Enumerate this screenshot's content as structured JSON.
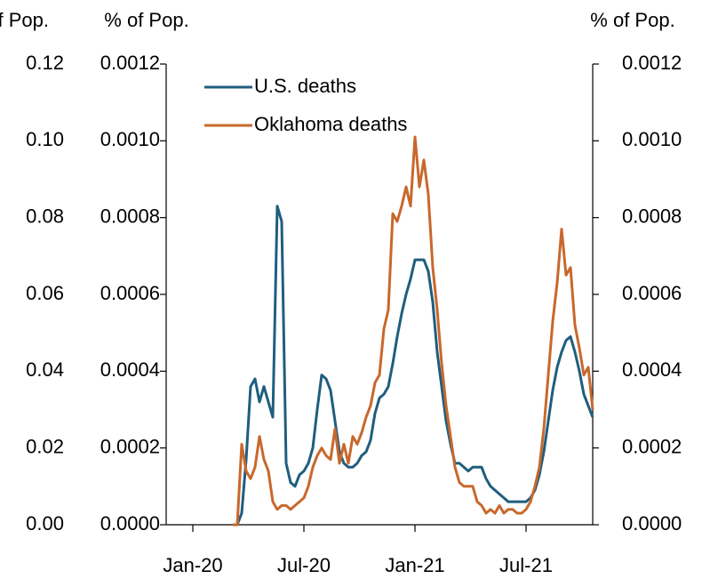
{
  "chart_data": {
    "type": "line",
    "y3_label": "% of Pop.",
    "y_label": "% of Pop.",
    "y2_label": "% of Pop.",
    "x": [
      2.16,
      2.4,
      2.64,
      2.88,
      3.12,
      3.36,
      3.6,
      3.84,
      4.08,
      4.32,
      4.56,
      4.8,
      5.04,
      5.28,
      5.52,
      5.76,
      6,
      6.24,
      6.48,
      6.72,
      6.96,
      7.2,
      7.44,
      7.68,
      7.92,
      8.16,
      8.4,
      8.64,
      8.88,
      9.12,
      9.36,
      9.6,
      9.84,
      10.08,
      10.32,
      10.56,
      10.8,
      11.04,
      11.28,
      11.52,
      11.76,
      12,
      12.24,
      12.48,
      12.72,
      12.96,
      13.2,
      13.44,
      13.68,
      13.92,
      14.16,
      14.4,
      14.64,
      14.88,
      15.12,
      15.36,
      15.6,
      15.84,
      16.08,
      16.32,
      16.56,
      16.8,
      17.04,
      17.28,
      17.52,
      17.76,
      18,
      18.24,
      18.48,
      18.72,
      18.96,
      19.2,
      19.44,
      19.68,
      19.92,
      20.16,
      20.4,
      20.64,
      20.88,
      21.12,
      21.36,
      21.6
    ],
    "xlim": [
      -1.44,
      21.6
    ],
    "xticks": [
      {
        "value": 0,
        "label": "Jan-20"
      },
      {
        "value": 6,
        "label": "Jul-20"
      },
      {
        "value": 12,
        "label": "Jan-21"
      },
      {
        "value": 18,
        "label": "Jul-21"
      }
    ],
    "ylim": [
      0,
      0.0012
    ],
    "yticks": [
      {
        "value": 0,
        "label": "0.0000"
      },
      0.0002,
      0.0004,
      0.0006,
      0.0008,
      {
        "value": 0.001,
        "label": "0.0010"
      },
      0.0012
    ],
    "y2lim": [
      0,
      0.0012
    ],
    "y2ticks": [
      {
        "value": 0,
        "label": "0.0000"
      },
      0.0002,
      0.0004,
      0.0006,
      0.0008,
      {
        "value": 0.001,
        "label": "0.0010"
      },
      0.0012
    ],
    "y3lim": [
      0,
      0.12
    ],
    "y3ticks": [
      {
        "value": 0,
        "label": "0.00"
      },
      0.02,
      0.04,
      0.06,
      0.08,
      {
        "value": 0.1,
        "label": "0.10"
      },
      0.12
    ],
    "legend": "upper left",
    "series": [
      {
        "name": "U.S. deaths",
        "color": "#1f5e7e",
        "values": [
          0,
          0,
          3e-05,
          0.00017,
          0.00036,
          0.00038,
          0.00032,
          0.00036,
          0.00032,
          0.00028,
          0.00083,
          0.00079,
          0.00016,
          0.00011,
          0.0001,
          0.00013,
          0.00014,
          0.00016,
          0.0002,
          0.0003,
          0.00039,
          0.00038,
          0.00035,
          0.00027,
          0.00019,
          0.00016,
          0.00015,
          0.00015,
          0.00016,
          0.00018,
          0.00019,
          0.00022,
          0.00029,
          0.00033,
          0.00034,
          0.00036,
          0.00042,
          0.00049,
          0.00055,
          0.0006,
          0.00064,
          0.00069,
          0.00069,
          0.00069,
          0.00066,
          0.00058,
          0.00045,
          0.00036,
          0.00027,
          0.00021,
          0.00016,
          0.00016,
          0.00015,
          0.00014,
          0.00015,
          0.00015,
          0.00015,
          0.00012,
          0.0001,
          9e-05,
          8e-05,
          7e-05,
          6e-05,
          6e-05,
          6e-05,
          6e-05,
          6e-05,
          7e-05,
          9e-05,
          0.00013,
          0.00019,
          0.00027,
          0.00035,
          0.00041,
          0.00045,
          0.00048,
          0.00049,
          0.00045,
          0.0004,
          0.00034,
          0.00031,
          0.00028
        ]
      },
      {
        "name": "Oklahoma deaths",
        "color": "#c8682c",
        "values": [
          0,
          0,
          0.00021,
          0.00014,
          0.00012,
          0.00015,
          0.00023,
          0.00017,
          0.00014,
          6e-05,
          4e-05,
          5e-05,
          5e-05,
          4e-05,
          5e-05,
          6e-05,
          7e-05,
          0.0001,
          0.00015,
          0.00018,
          0.0002,
          0.00018,
          0.00017,
          0.00025,
          0.00016,
          0.00021,
          0.00016,
          0.00023,
          0.00021,
          0.00024,
          0.00028,
          0.00031,
          0.00037,
          0.00039,
          0.00051,
          0.00056,
          0.00081,
          0.00079,
          0.00083,
          0.00088,
          0.00083,
          0.00101,
          0.00088,
          0.00095,
          0.00086,
          0.00067,
          0.00056,
          0.00042,
          0.00031,
          0.00023,
          0.00015,
          0.00011,
          0.0001,
          0.0001,
          0.0001,
          6e-05,
          5e-05,
          3e-05,
          4e-05,
          3e-05,
          5e-05,
          3e-05,
          4e-05,
          4e-05,
          3e-05,
          3e-05,
          4e-05,
          6e-05,
          0.0001,
          0.00015,
          0.00025,
          0.00039,
          0.00053,
          0.00063,
          0.00077,
          0.00065,
          0.00067,
          0.00052,
          0.00046,
          0.00039,
          0.00041,
          0.0003
        ]
      }
    ]
  }
}
